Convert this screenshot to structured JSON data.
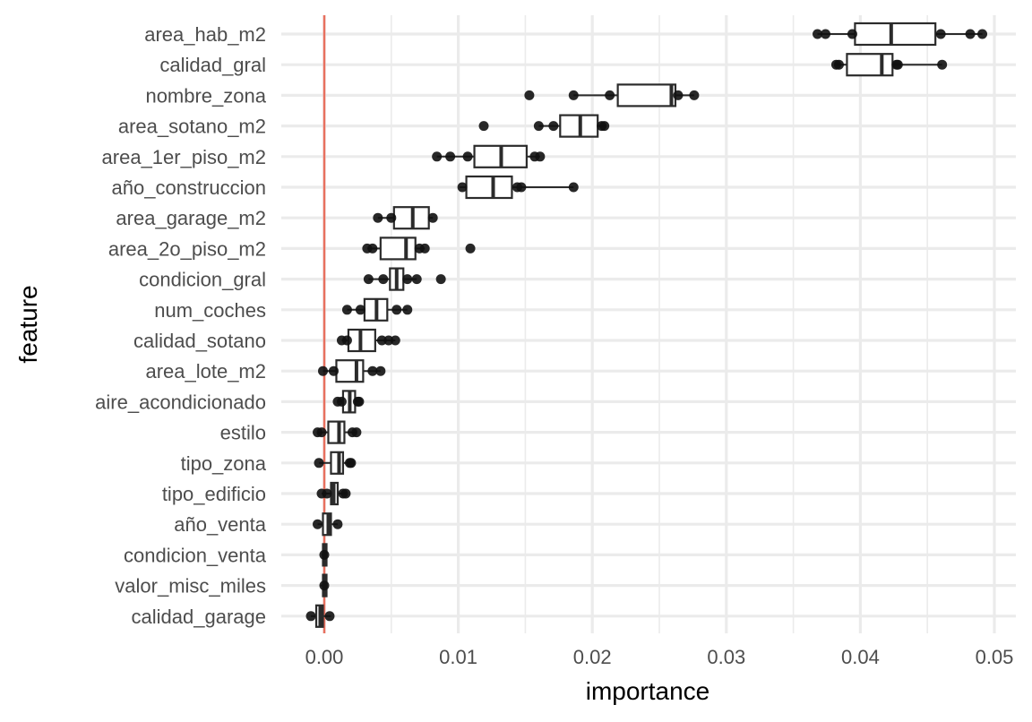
{
  "chart_data": {
    "type": "boxplot",
    "title": "",
    "xlabel": "importance",
    "ylabel": "feature",
    "xlim": [
      -0.0032,
      0.0516
    ],
    "xticks": [
      0.0,
      0.01,
      0.02,
      0.03,
      0.04,
      0.05
    ],
    "xtick_labels": [
      "0.00",
      "0.01",
      "0.02",
      "0.03",
      "0.04",
      "0.05"
    ],
    "grid": true,
    "reference_line": {
      "value": 0.0,
      "color": "#e8705f"
    },
    "colors": {
      "box": "#2b2b2b",
      "points": "#111111",
      "grid": "#ebebeb",
      "ref": "#e8705f",
      "label": "#4d4d4d"
    },
    "features": [
      {
        "name": "area_hab_m2",
        "q1": 0.0396,
        "median": 0.0423,
        "q3": 0.0456,
        "wlow": 0.0368,
        "whigh": 0.0491,
        "points": [
          0.0368,
          0.0374,
          0.0394,
          0.046,
          0.0482,
          0.0491
        ]
      },
      {
        "name": "calidad_gral",
        "q1": 0.039,
        "median": 0.0416,
        "q3": 0.0424,
        "wlow": 0.0382,
        "whigh": 0.0461,
        "points": [
          0.0382,
          0.0384,
          0.0427,
          0.0428,
          0.0461
        ]
      },
      {
        "name": "nombre_zona",
        "q1": 0.0219,
        "median": 0.0259,
        "q3": 0.0262,
        "wlow": 0.0186,
        "whigh": 0.0276,
        "points": [
          0.0153,
          0.0186,
          0.0213,
          0.0264,
          0.0276
        ]
      },
      {
        "name": "area_sotano_m2",
        "q1": 0.0176,
        "median": 0.0191,
        "q3": 0.0204,
        "wlow": 0.016,
        "whigh": 0.0209,
        "points": [
          0.0119,
          0.016,
          0.0171,
          0.0207,
          0.0209
        ]
      },
      {
        "name": "area_1er_piso_m2",
        "q1": 0.0112,
        "median": 0.0132,
        "q3": 0.0151,
        "wlow": 0.0084,
        "whigh": 0.0161,
        "points": [
          0.0084,
          0.0094,
          0.0107,
          0.0157,
          0.0161
        ]
      },
      {
        "name": "año_construccion",
        "q1": 0.0106,
        "median": 0.0126,
        "q3": 0.014,
        "wlow": 0.0101,
        "whigh": 0.0186,
        "points": [
          0.0103,
          0.0144,
          0.0147,
          0.0186
        ]
      },
      {
        "name": "area_garage_m2",
        "q1": 0.0052,
        "median": 0.0066,
        "q3": 0.0078,
        "wlow": 0.004,
        "whigh": 0.0081,
        "points": [
          0.004,
          0.005,
          0.0081
        ]
      },
      {
        "name": "area_2o_piso_m2",
        "q1": 0.0042,
        "median": 0.0061,
        "q3": 0.0068,
        "wlow": 0.0032,
        "whigh": 0.0075,
        "points": [
          0.0032,
          0.0036,
          0.0071,
          0.0075,
          0.0109
        ]
      },
      {
        "name": "condicion_gral",
        "q1": 0.0049,
        "median": 0.0054,
        "q3": 0.0059,
        "wlow": 0.0033,
        "whigh": 0.0069,
        "points": [
          0.0033,
          0.0044,
          0.0062,
          0.0069,
          0.0087
        ]
      },
      {
        "name": "num_coches",
        "q1": 0.003,
        "median": 0.0039,
        "q3": 0.0047,
        "wlow": 0.0017,
        "whigh": 0.0062,
        "points": [
          0.0017,
          0.0027,
          0.0054,
          0.0062
        ]
      },
      {
        "name": "calidad_sotano",
        "q1": 0.0018,
        "median": 0.0027,
        "q3": 0.0038,
        "wlow": 0.0013,
        "whigh": 0.0053,
        "points": [
          0.0013,
          0.0017,
          0.0043,
          0.0048,
          0.0053
        ]
      },
      {
        "name": "area_lote_m2",
        "q1": 0.0009,
        "median": 0.0024,
        "q3": 0.0029,
        "wlow": -0.0001,
        "whigh": 0.0042,
        "points": [
          -0.0001,
          0.0007,
          0.0036,
          0.0042
        ]
      },
      {
        "name": "aire_acondicionado",
        "q1": 0.0014,
        "median": 0.0019,
        "q3": 0.0023,
        "wlow": 0.001,
        "whigh": 0.0026,
        "points": [
          0.001,
          0.0013,
          0.0025,
          0.0026
        ]
      },
      {
        "name": "estilo",
        "q1": 0.0003,
        "median": 0.0011,
        "q3": 0.0015,
        "wlow": -0.0005,
        "whigh": 0.0024,
        "points": [
          -0.0005,
          -0.0002,
          0.0021,
          0.0024
        ]
      },
      {
        "name": "tipo_zona",
        "q1": 0.0005,
        "median": 0.0011,
        "q3": 0.0014,
        "wlow": -0.0004,
        "whigh": 0.002,
        "points": [
          -0.0004,
          0.0019,
          0.002
        ]
      },
      {
        "name": "tipo_edificio",
        "q1": 0.0005,
        "median": 0.0007,
        "q3": 0.001,
        "wlow": -0.0002,
        "whigh": 0.0016,
        "points": [
          -0.0002,
          0.0002,
          0.0014,
          0.0016
        ]
      },
      {
        "name": "año_venta",
        "q1": -0.0001,
        "median": 0.0003,
        "q3": 0.0005,
        "wlow": -0.0005,
        "whigh": 0.001,
        "points": [
          -0.0005,
          0.001
        ]
      },
      {
        "name": "condicion_venta",
        "q1": -0.0001,
        "median": 0.0,
        "q3": 0.0001,
        "wlow": -0.0002,
        "whigh": 0.0002,
        "points": [
          0.0
        ]
      },
      {
        "name": "valor_misc_miles",
        "q1": -0.0001,
        "median": 0.0,
        "q3": 0.0001,
        "wlow": -0.0003,
        "whigh": 0.0002,
        "points": [
          0.0
        ]
      },
      {
        "name": "calidad_garage",
        "q1": -0.0006,
        "median": -0.0003,
        "q3": -0.0001,
        "wlow": -0.001,
        "whigh": 0.0005,
        "points": [
          -0.001,
          0.0004
        ]
      }
    ]
  }
}
